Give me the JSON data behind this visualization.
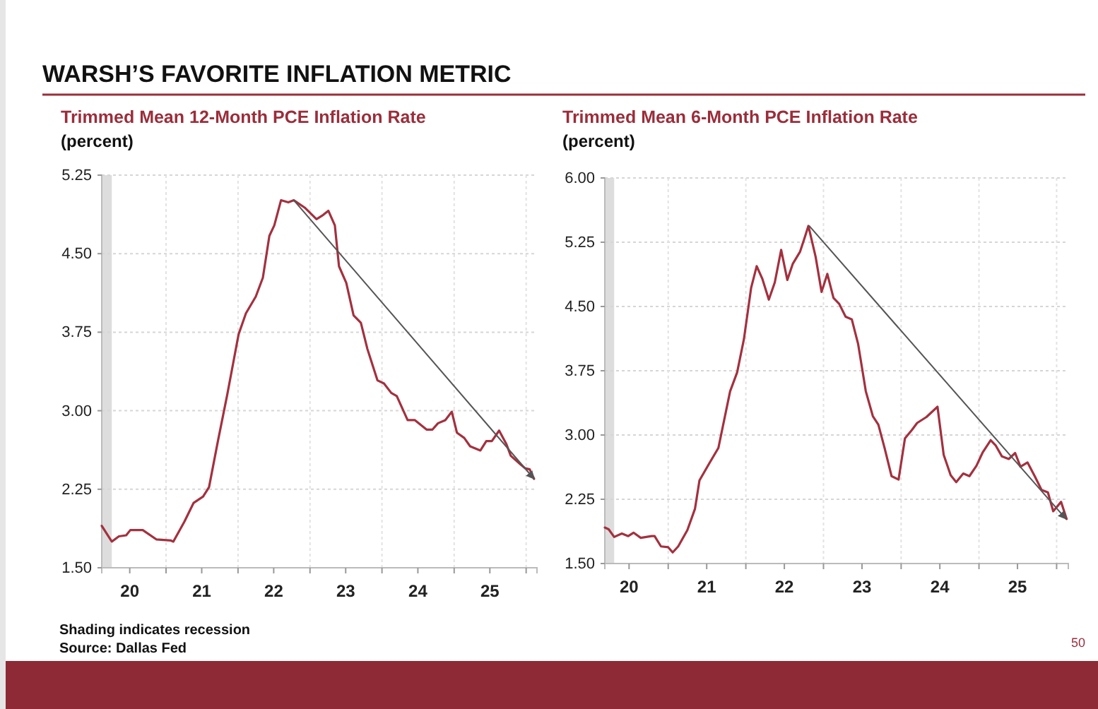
{
  "chart_data": [
    {
      "type": "line",
      "title": "WARSH’S FAVORITE INFLATION METRIC",
      "subtitle": "Trimmed Mean 12-Month PCE Inflation Rate",
      "ylabel": "(percent)",
      "x": [
        "2020-02-10",
        "2020-04-01",
        "2020-05-07",
        "2020-06-13",
        "2020-07-04",
        "2020-09-05",
        "2020-11-14",
        "2021-01-26",
        "2021-02-07",
        "2021-04-04",
        "2021-05-21",
        "2021-07-08",
        "2021-08-07",
        "2021-09-20",
        "2021-11-07",
        "2022-01-04",
        "2022-02-10",
        "2022-04-01",
        "2022-05-07",
        "2022-06-09",
        "2022-07-04",
        "2022-08-07",
        "2022-09-13",
        "2022-10-11",
        "2022-12-05",
        "2023-02-03",
        "2023-03-09",
        "2023-04-04",
        "2023-05-07",
        "2023-05-28",
        "2023-07-04",
        "2023-08-10",
        "2023-09-16",
        "2023-10-19",
        "2023-12-09",
        "2024-01-11",
        "2024-02-17",
        "2024-03-16",
        "2024-05-10",
        "2024-06-16",
        "2024-08-14",
        "2024-09-13",
        "2024-10-11",
        "2024-11-17",
        "2024-12-20",
        "2025-01-15",
        "2025-02-21",
        "2025-03-23",
        "2025-05-14",
        "2025-06-13",
        "2025-07-11",
        "2025-08-17",
        "2025-09-23",
        "2025-10-15",
        "2025-12-02",
        "2025-12-27",
        "2026-01-19",
        "2026-02-10"
      ],
      "series": [
        {
          "color": "#a3313f",
          "values": [
            1.9,
            1.75,
            1.8,
            1.81,
            1.86,
            1.86,
            1.77,
            1.76,
            1.75,
            1.94,
            2.12,
            2.18,
            2.27,
            2.7,
            3.15,
            3.73,
            3.93,
            4.09,
            4.27,
            4.67,
            4.77,
            5.01,
            4.99,
            5.01,
            4.94,
            4.83,
            4.87,
            4.91,
            4.77,
            4.38,
            4.22,
            3.91,
            3.84,
            3.59,
            3.29,
            3.26,
            3.17,
            3.14,
            2.91,
            2.91,
            2.82,
            2.82,
            2.88,
            2.91,
            2.99,
            2.79,
            2.74,
            2.66,
            2.62,
            2.71,
            2.71,
            2.81,
            2.68,
            2.57,
            2.49,
            2.45,
            2.44,
            2.35
          ]
        },
        {
          "color": "#555555",
          "x": [
            "2022-10-11",
            "2026-02-10"
          ],
          "values": [
            5.01,
            2.35
          ]
        }
      ],
      "xlim": [
        "2020-02-10",
        "2026-02-25"
      ],
      "ylim": [
        1.5,
        5.25
      ],
      "xticks": [
        {
          "value": "2020-07-01",
          "label": "20"
        },
        {
          "value": "2021-01-01",
          "label": null
        },
        {
          "value": "2021-07-01",
          "label": "21"
        },
        {
          "value": "2022-01-01",
          "label": null
        },
        {
          "value": "2022-07-01",
          "label": "22"
        },
        {
          "value": "2023-01-01",
          "label": null
        },
        {
          "value": "2023-07-01",
          "label": "23"
        },
        {
          "value": "2024-01-01",
          "label": null
        },
        {
          "value": "2024-07-01",
          "label": "24"
        },
        {
          "value": "2025-01-01",
          "label": null
        },
        {
          "value": "2025-07-01",
          "label": "25"
        },
        {
          "value": "2026-01-01",
          "label": null
        }
      ],
      "yticks": [
        {
          "value": 1.5,
          "label": "1.50"
        },
        {
          "value": 2.25,
          "label": "2.25"
        },
        {
          "value": 3,
          "label": "3.00"
        },
        {
          "value": 3.75,
          "label": "3.75"
        },
        {
          "value": 4.5,
          "label": "4.50"
        },
        {
          "value": 5.25,
          "label": "5.25"
        }
      ],
      "bands": [
        {
          "axis": "x",
          "from": "2020-02-10",
          "to": "2020-04-01",
          "color": "#dddddd"
        }
      ],
      "grid": true,
      "annotations": [
        "Shading indicates recession",
        "Source: Dallas Fed"
      ]
    },
    {
      "type": "line",
      "subtitle": "Trimmed Mean 6-Month PCE Inflation Rate",
      "ylabel": "(percent)",
      "x": [
        "2020-03-09",
        "2020-03-27",
        "2020-04-22",
        "2020-05-28",
        "2020-06-27",
        "2020-07-22",
        "2020-08-25",
        "2020-10-15",
        "2020-10-29",
        "2020-11-28",
        "2021-01-01",
        "2021-01-22",
        "2021-02-17",
        "2021-04-01",
        "2021-05-07",
        "2021-05-28",
        "2021-07-11",
        "2021-08-25",
        "2021-10-19",
        "2021-11-21",
        "2021-12-23",
        "2022-01-26",
        "2022-02-21",
        "2022-03-20",
        "2022-04-19",
        "2022-05-17",
        "2022-06-16",
        "2022-07-15",
        "2022-08-10",
        "2022-09-13",
        "2022-10-04",
        "2022-10-22",
        "2022-11-25",
        "2022-12-23",
        "2023-01-19",
        "2023-02-17",
        "2023-03-16",
        "2023-04-15",
        "2023-05-14",
        "2023-06-13",
        "2023-07-19",
        "2023-08-21",
        "2023-09-16",
        "2023-10-15",
        "2023-11-17",
        "2023-12-20",
        "2024-01-19",
        "2024-02-21",
        "2024-03-16",
        "2024-04-29",
        "2024-06-20",
        "2024-07-19",
        "2024-08-21",
        "2024-09-16",
        "2024-10-19",
        "2024-11-17",
        "2024-12-20",
        "2025-01-19",
        "2025-02-25",
        "2025-03-20",
        "2025-04-19",
        "2025-05-21",
        "2025-06-20",
        "2025-07-15",
        "2025-08-17",
        "2025-09-20",
        "2025-10-22",
        "2025-11-21",
        "2025-12-16",
        "2026-01-22",
        "2026-02-17"
      ],
      "series": [
        {
          "color": "#a3313f",
          "values": [
            1.92,
            1.9,
            1.81,
            1.85,
            1.82,
            1.86,
            1.8,
            1.82,
            1.82,
            1.7,
            1.69,
            1.63,
            1.7,
            1.89,
            2.14,
            2.47,
            2.66,
            2.85,
            3.51,
            3.73,
            4.12,
            4.72,
            4.97,
            4.82,
            4.58,
            4.78,
            5.16,
            4.81,
            5.0,
            5.14,
            5.3,
            5.44,
            5.08,
            4.67,
            4.88,
            4.6,
            4.53,
            4.38,
            4.35,
            4.06,
            3.51,
            3.22,
            3.12,
            2.85,
            2.52,
            2.48,
            2.96,
            3.06,
            3.14,
            3.21,
            3.33,
            2.77,
            2.53,
            2.45,
            2.55,
            2.52,
            2.64,
            2.8,
            2.94,
            2.88,
            2.75,
            2.72,
            2.79,
            2.63,
            2.68,
            2.52,
            2.36,
            2.33,
            2.11,
            2.22,
            2.02
          ]
        },
        {
          "color": "#555555",
          "x": [
            "2022-10-26",
            "2026-02-14"
          ],
          "values": [
            5.44,
            2.02
          ]
        }
      ],
      "xlim": [
        "2020-03-09",
        "2026-02-25"
      ],
      "ylim": [
        1.5,
        6
      ],
      "xticks": [
        {
          "value": "2020-07-01",
          "label": "20"
        },
        {
          "value": "2021-01-01",
          "label": null
        },
        {
          "value": "2021-07-01",
          "label": "21"
        },
        {
          "value": "2022-01-01",
          "label": null
        },
        {
          "value": "2022-07-01",
          "label": "22"
        },
        {
          "value": "2023-01-01",
          "label": null
        },
        {
          "value": "2023-07-01",
          "label": "23"
        },
        {
          "value": "2024-01-01",
          "label": null
        },
        {
          "value": "2024-07-01",
          "label": "24"
        },
        {
          "value": "2025-01-01",
          "label": null
        },
        {
          "value": "2025-07-01",
          "label": "25"
        },
        {
          "value": "2026-01-01",
          "label": null
        }
      ],
      "yticks": [
        {
          "value": 1.5,
          "label": "1.50"
        },
        {
          "value": 2.25,
          "label": "2.25"
        },
        {
          "value": 3,
          "label": "3.00"
        },
        {
          "value": 3.75,
          "label": "3.75"
        },
        {
          "value": 4.5,
          "label": "4.50"
        },
        {
          "value": 5.25,
          "label": "5.25"
        },
        {
          "value": 6,
          "label": "6.00"
        }
      ],
      "bands": [
        {
          "axis": "x",
          "from": "2020-03-09",
          "to": "2020-04-22",
          "color": "#dddddd"
        }
      ],
      "grid": true,
      "annotations": [
        "50"
      ]
    }
  ]
}
